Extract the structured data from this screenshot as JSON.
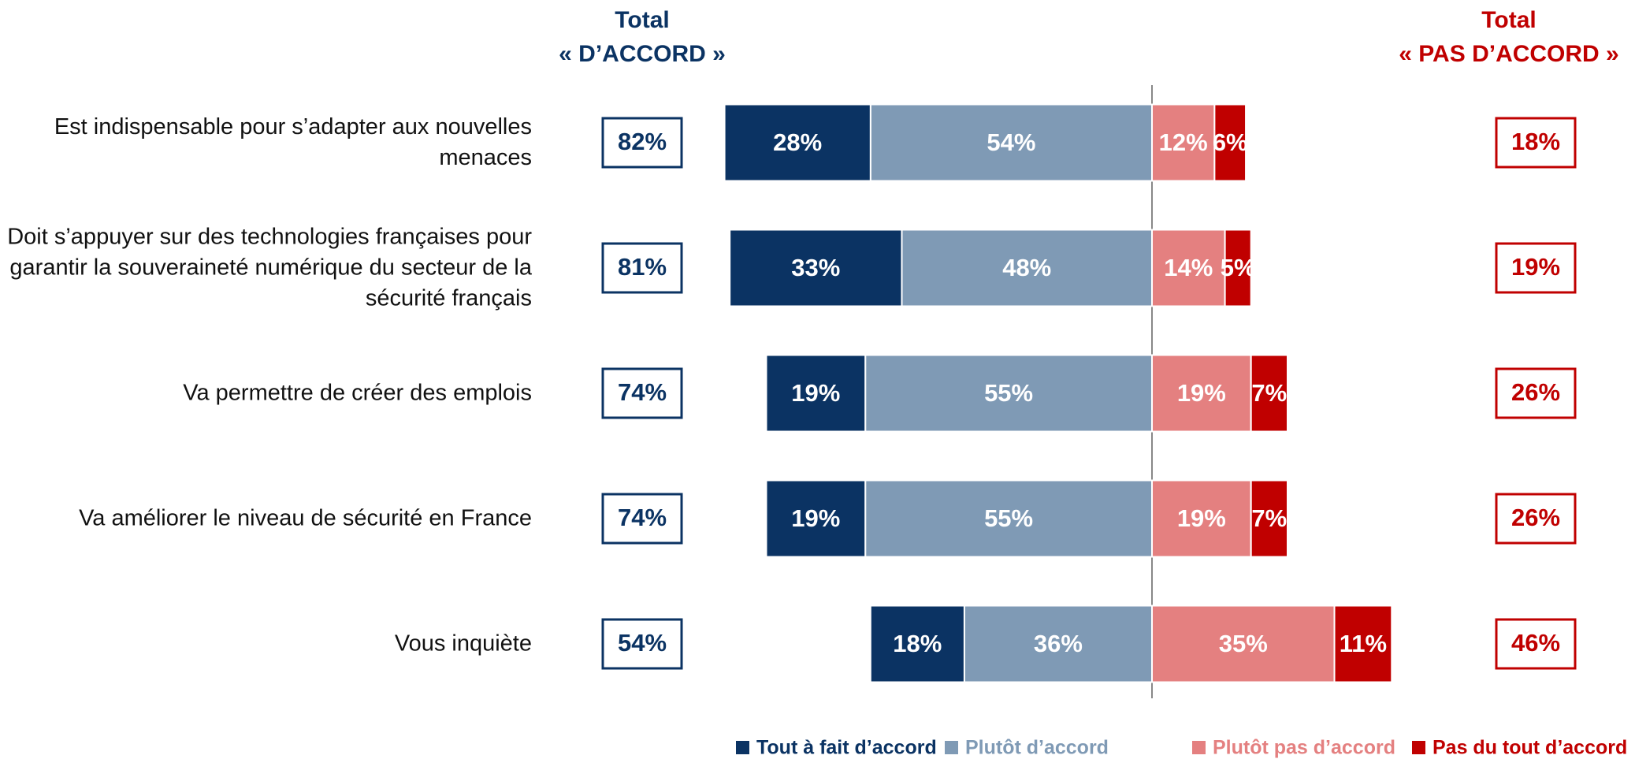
{
  "chart_data": {
    "type": "diverging-bar",
    "categories": [
      "Est indispensable pour s’adapter aux nouvelles menaces",
      "Doit s’appuyer sur des technologies françaises pour garantir la souveraineté numérique du secteur de la sécurité français",
      "Va permettre de créer des emplois",
      "Va améliorer le niveau de sécurité en France",
      "Vous inquiète"
    ],
    "series": [
      {
        "name": "Tout à fait d’accord",
        "color": "#0b3363",
        "values": [
          28,
          33,
          19,
          19,
          18
        ],
        "value_labels": [
          "28%",
          "33%",
          "19%",
          "19%",
          "18%"
        ]
      },
      {
        "name": "Plutôt d’accord",
        "color": "#7f9ab5",
        "values": [
          54,
          48,
          55,
          55,
          36
        ],
        "value_labels": [
          "54%",
          "48%",
          "55%",
          "55%",
          "36%"
        ]
      },
      {
        "name": "Plutôt pas d’accord",
        "color": "#e48080",
        "values": [
          12,
          14,
          19,
          19,
          35
        ],
        "value_labels": [
          "12%",
          "14%",
          "19%",
          "19%",
          "35%"
        ]
      },
      {
        "name": "Pas du tout d’accord",
        "color": "#c00000",
        "values": [
          6,
          5,
          7,
          7,
          11
        ],
        "value_labels": [
          "6%",
          "5%",
          "7%",
          "7%",
          "11%"
        ]
      }
    ],
    "totals": [
      {
        "title": "Total",
        "label": "« D’ACCORD »",
        "color": "#0b3363",
        "values": [
          82,
          81,
          74,
          74,
          54
        ],
        "value_labels": [
          "82%",
          "81%",
          "74%",
          "74%",
          "54%"
        ]
      },
      {
        "title": "Total",
        "label": "« PAS D’ACCORD »",
        "color": "#c00000",
        "values": [
          18,
          19,
          26,
          26,
          46
        ],
        "value_labels": [
          "18%",
          "19%",
          "26%",
          "26%",
          "46%"
        ]
      }
    ]
  }
}
